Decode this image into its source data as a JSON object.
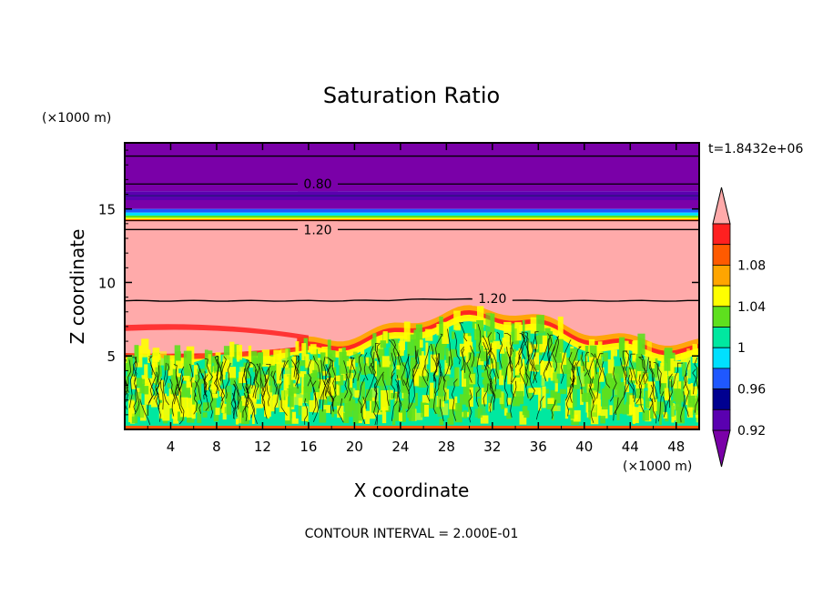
{
  "colors": {
    "purple_dark": "#7a00a8",
    "purple_band": "#5a00b0",
    "navy": "#000090",
    "blue": "#1f58ff",
    "cyan": "#00e0ff",
    "teal": "#00e8a0",
    "green": "#5ee01e",
    "yellow": "#ffff00",
    "orange_light": "#ffa500",
    "orange": "#ff5a00",
    "red": "#ff2020",
    "pink": "#ffaaaa"
  },
  "chart_data": {
    "type": "heatmap",
    "title": "Saturation Ratio",
    "xlabel": "X coordinate",
    "ylabel": "Z coordinate",
    "x_unit": "(×1000 m)",
    "y_unit": "(×1000 m)",
    "time_label": "t=1.8432e+06",
    "footer": "CONTOUR INTERVAL = 2.000E-01",
    "xlim": [
      0,
      50
    ],
    "ylim": [
      0,
      19.5
    ],
    "x_ticks": [
      4,
      8,
      12,
      16,
      20,
      24,
      28,
      32,
      36,
      40,
      44,
      48
    ],
    "y_ticks": [
      5,
      10,
      15
    ],
    "colorbar": {
      "levels": [
        0.92,
        0.94,
        0.96,
        0.98,
        1.0,
        1.02,
        1.04,
        1.06,
        1.08,
        1.1
      ],
      "labels": [
        "0.92",
        "0.96",
        "1",
        "1.04",
        "1.08"
      ],
      "colors": [
        "#5a00b0",
        "#000090",
        "#1f58ff",
        "#00e0ff",
        "#00e8a0",
        "#5ee01e",
        "#ffff00",
        "#ffa500",
        "#ff5a00",
        "#ff2020"
      ],
      "under_color": "#7a00a8",
      "over_color": "#ffaaaa"
    },
    "contour_labels": [
      {
        "text": "0.80",
        "x": 16.8,
        "z": 16.7
      },
      {
        "text": "1.20",
        "x": 16.8,
        "z": 13.6
      },
      {
        "text": "1.20",
        "x": 32.0,
        "z": 8.9
      }
    ],
    "layers": [
      {
        "from_z": 16.2,
        "to_z": 19.5,
        "value": "< 0.92",
        "description_color": "#7a00a8"
      },
      {
        "from_z": 15.6,
        "to_z": 16.2,
        "value": "0.92",
        "description_color": "#5a00b0"
      },
      {
        "from_z": 14.2,
        "to_z": 15.0,
        "value": "0.94-1.10",
        "description_color": "#00e0ff"
      },
      {
        "from_z": 8.8,
        "to_z": 14.2,
        "value": "> 1.10",
        "description_color": "#ffaaaa"
      },
      {
        "from_z": 0.2,
        "to_z": 6.5,
        "value": "0.98-1.02",
        "description_color": "#00e8a0"
      }
    ]
  }
}
